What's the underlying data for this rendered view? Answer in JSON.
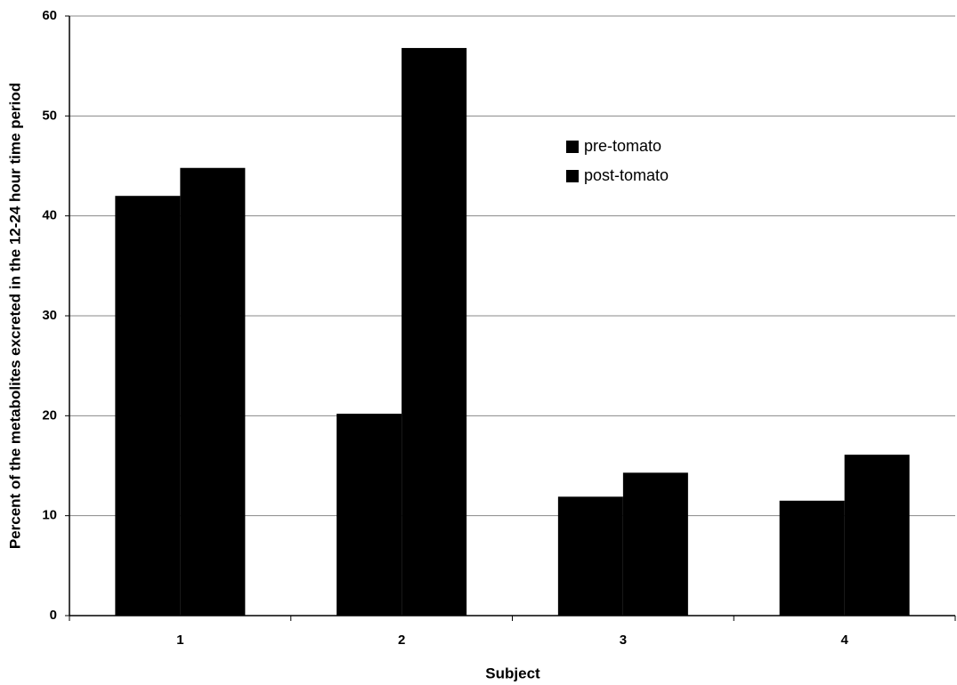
{
  "chart_data": {
    "type": "bar",
    "x_label": "Subject",
    "y_label": "Percent of the metabolites excreted in the 12-24 hour time period",
    "categories": [
      "1",
      "2",
      "3",
      "4"
    ],
    "series": [
      {
        "name": "pre-tomato",
        "color": "#000000",
        "values": [
          42.0,
          20.2,
          11.9,
          11.5
        ]
      },
      {
        "name": "post-tomato",
        "color": "#000000",
        "values": [
          44.8,
          56.8,
          14.3,
          16.1
        ]
      }
    ],
    "ylim": [
      0,
      60
    ],
    "yticks": [
      0,
      10,
      20,
      30,
      40,
      50,
      60
    ],
    "grid": true,
    "legend": "upper right"
  }
}
